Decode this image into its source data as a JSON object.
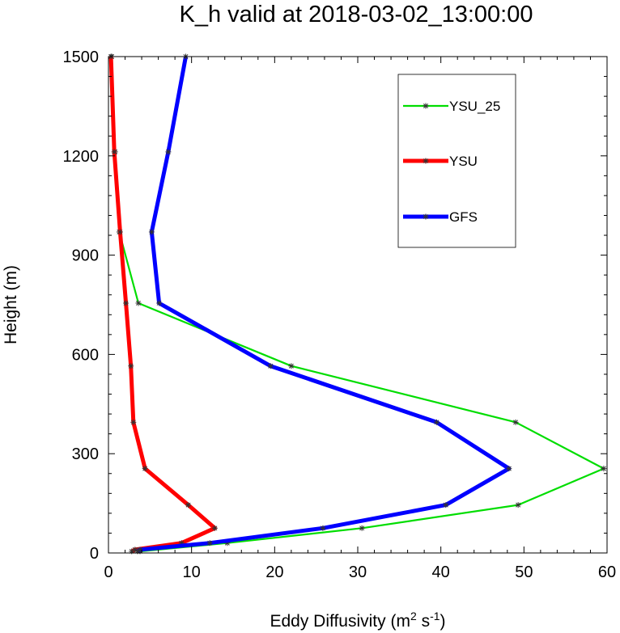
{
  "chart_data": {
    "type": "line",
    "title": "K_h valid at 2018-03-02_13:00:00",
    "xlabel": {
      "main": "Eddy Diffusivity (m",
      "sup1": "2",
      "mid": " s",
      "sup2": "-1",
      "end": ")"
    },
    "ylabel": "Height (m)",
    "xlim": [
      0,
      60
    ],
    "ylim": [
      0,
      1500
    ],
    "xticks": [
      0,
      10,
      20,
      30,
      40,
      50,
      60
    ],
    "yticks": [
      0,
      300,
      600,
      900,
      1200,
      1500
    ],
    "xtick_labels": [
      "0",
      "10",
      "20",
      "30",
      "40",
      "50",
      "60"
    ],
    "ytick_labels": [
      "0",
      "300",
      "600",
      "900",
      "1200",
      "1500"
    ],
    "grid": false,
    "legend_position": "top-right",
    "series": [
      {
        "name": "YSU_25",
        "color": "#00dd00",
        "points": [
          [
            3.8,
            5
          ],
          [
            14.3,
            30
          ],
          [
            30.5,
            75
          ],
          [
            49.3,
            145
          ],
          [
            59.6,
            255
          ],
          [
            49.0,
            395
          ],
          [
            22.0,
            565
          ],
          [
            3.6,
            755
          ],
          [
            1.3,
            970
          ],
          [
            0.8,
            1212
          ],
          [
            0.4,
            1500
          ]
        ]
      },
      {
        "name": "YSU",
        "color": "#ff0000",
        "points": [
          [
            2.8,
            5
          ],
          [
            3.2,
            10
          ],
          [
            8.8,
            30
          ],
          [
            12.8,
            75
          ],
          [
            9.6,
            145
          ],
          [
            4.4,
            255
          ],
          [
            3.0,
            395
          ],
          [
            2.7,
            565
          ],
          [
            2.1,
            755
          ],
          [
            1.4,
            970
          ],
          [
            0.7,
            1212
          ],
          [
            0.3,
            1500
          ]
        ]
      },
      {
        "name": "GFS",
        "color": "#0000ff",
        "points": [
          [
            3.5,
            5
          ],
          [
            3.8,
            10
          ],
          [
            12.2,
            30
          ],
          [
            25.8,
            75
          ],
          [
            40.6,
            145
          ],
          [
            48.2,
            255
          ],
          [
            39.5,
            395
          ],
          [
            19.5,
            565
          ],
          [
            6.1,
            755
          ],
          [
            5.2,
            970
          ],
          [
            7.2,
            1212
          ],
          [
            9.3,
            1500
          ]
        ]
      }
    ]
  }
}
